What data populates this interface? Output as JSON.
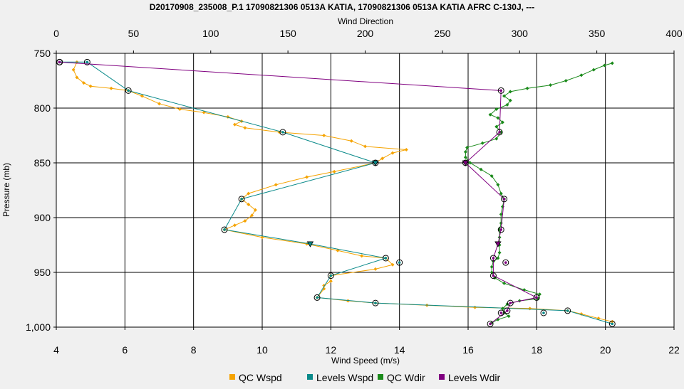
{
  "chart_data": {
    "type": "line",
    "title": "D20170908_235008_P.1  17090821306 0513A KATIA, 17090821306 0513A KATIA AFRC C-130J, ---",
    "xlabel": "Wind Speed (m/s)",
    "x2label": "Wind Direction",
    "ylabel": "Pressure (mb)",
    "xlim": [
      4,
      22
    ],
    "x2lim": [
      0,
      400
    ],
    "ylim": [
      1000,
      750
    ],
    "xticks": [
      "4",
      "6",
      "8",
      "10",
      "12",
      "14",
      "16",
      "18",
      "20",
      "22"
    ],
    "x2ticks": [
      "0",
      "50",
      "100",
      "150",
      "200",
      "250",
      "300",
      "350",
      "400"
    ],
    "yticks": [
      "750",
      "800",
      "850",
      "900",
      "950",
      "1,000"
    ],
    "grid": true,
    "legend_position": "bottom",
    "colors": {
      "qc_wspd": "#f5a300",
      "levels_wspd": "#0a8a8a",
      "qc_wdir": "#1a8a1a",
      "levels_wdir": "#800080"
    },
    "series": [
      {
        "name": "QC Wspd",
        "axis": "speed",
        "points": [
          [
            4.6,
            758
          ],
          [
            4.5,
            765
          ],
          [
            4.6,
            772
          ],
          [
            4.8,
            777
          ],
          [
            5.0,
            780
          ],
          [
            5.6,
            782
          ],
          [
            6.1,
            784
          ],
          [
            6.5,
            789
          ],
          [
            7.0,
            796
          ],
          [
            7.6,
            801
          ],
          [
            8.3,
            804
          ],
          [
            9.0,
            808
          ],
          [
            9.4,
            812
          ],
          [
            9.2,
            815
          ],
          [
            9.5,
            818
          ],
          [
            10.5,
            822
          ],
          [
            11.8,
            825
          ],
          [
            12.6,
            830
          ],
          [
            13.0,
            835
          ],
          [
            14.2,
            838
          ],
          [
            13.8,
            841
          ],
          [
            13.5,
            846
          ],
          [
            13.3,
            850
          ],
          [
            12.1,
            858
          ],
          [
            11.3,
            863
          ],
          [
            10.4,
            870
          ],
          [
            9.6,
            878
          ],
          [
            9.4,
            883
          ],
          [
            9.6,
            888
          ],
          [
            9.8,
            893
          ],
          [
            9.7,
            898
          ],
          [
            9.5,
            903
          ],
          [
            9.2,
            907
          ],
          [
            8.9,
            911
          ],
          [
            10.0,
            918
          ],
          [
            11.3,
            924
          ],
          [
            12.2,
            930
          ],
          [
            12.9,
            935
          ],
          [
            13.6,
            937
          ],
          [
            13.8,
            943
          ],
          [
            13.3,
            947
          ],
          [
            12.0,
            953
          ],
          [
            12.0,
            958
          ],
          [
            11.8,
            962
          ],
          [
            11.8,
            965
          ],
          [
            11.6,
            973
          ],
          [
            12.5,
            976
          ],
          [
            13.3,
            978
          ],
          [
            14.8,
            980
          ],
          [
            16.2,
            982
          ],
          [
            17.8,
            983
          ],
          [
            18.9,
            985
          ],
          [
            19.3,
            988
          ],
          [
            19.8,
            992
          ],
          [
            20.2,
            995
          ]
        ]
      },
      {
        "name": "Levels Wspd",
        "axis": "speed",
        "points": [
          [
            4.1,
            758
          ],
          [
            4.9,
            758
          ],
          [
            6.1,
            784
          ],
          [
            10.6,
            822
          ],
          [
            13.3,
            850
          ],
          [
            9.4,
            883
          ],
          [
            8.9,
            911
          ],
          [
            11.4,
            924
          ],
          [
            13.6,
            937
          ],
          [
            12.0,
            953
          ],
          [
            11.6,
            973
          ],
          [
            13.3,
            978
          ],
          [
            18.9,
            985
          ],
          [
            20.2,
            997
          ]
        ],
        "markers": [
          [
            4.1,
            758
          ],
          [
            4.9,
            758
          ],
          [
            6.1,
            784
          ],
          [
            10.6,
            822
          ],
          [
            13.3,
            850
          ],
          [
            9.4,
            883
          ],
          [
            8.9,
            911
          ],
          [
            13.6,
            937
          ],
          [
            14.0,
            941
          ],
          [
            12.0,
            953
          ],
          [
            11.6,
            973
          ],
          [
            13.3,
            978
          ],
          [
            18.9,
            985
          ],
          [
            18.2,
            987
          ],
          [
            20.2,
            997
          ]
        ],
        "triangles": [
          [
            13.3,
            850
          ],
          [
            11.4,
            924
          ]
        ]
      },
      {
        "name": "QC Wdir",
        "axis": "direction",
        "points": [
          [
            360,
            759
          ],
          [
            355,
            761
          ],
          [
            348,
            765
          ],
          [
            340,
            770
          ],
          [
            330,
            775
          ],
          [
            320,
            779
          ],
          [
            305,
            782
          ],
          [
            294,
            785
          ],
          [
            290,
            789
          ],
          [
            294,
            793
          ],
          [
            292,
            797
          ],
          [
            285,
            801
          ],
          [
            281,
            806
          ],
          [
            286,
            809
          ],
          [
            289,
            813
          ],
          [
            285,
            817
          ],
          [
            288,
            822
          ],
          [
            285,
            828
          ],
          [
            276,
            832
          ],
          [
            266,
            836
          ],
          [
            265,
            840
          ],
          [
            265,
            845
          ],
          [
            268,
            850
          ],
          [
            275,
            856
          ],
          [
            282,
            862
          ],
          [
            286,
            870
          ],
          [
            288,
            878
          ],
          [
            290,
            883
          ],
          [
            289,
            890
          ],
          [
            288,
            897
          ],
          [
            288,
            905
          ],
          [
            287,
            911
          ],
          [
            287,
            918
          ],
          [
            287,
            925
          ],
          [
            287,
            932
          ],
          [
            286,
            937
          ],
          [
            283,
            940
          ],
          [
            282,
            945
          ],
          [
            282,
            950
          ],
          [
            284,
            955
          ],
          [
            290,
            960
          ],
          [
            303,
            966
          ],
          [
            313,
            970
          ],
          [
            312,
            974
          ],
          [
            300,
            976
          ],
          [
            292,
            979
          ],
          [
            289,
            983
          ],
          [
            290,
            987
          ],
          [
            293,
            990
          ],
          [
            286,
            993
          ],
          [
            282,
            996
          ]
        ]
      },
      {
        "name": "Levels Wdir",
        "axis": "direction",
        "points": [
          [
            2,
            758
          ],
          [
            288,
            784
          ],
          [
            287,
            822
          ],
          [
            265,
            850
          ],
          [
            290,
            883
          ],
          [
            288,
            911
          ],
          [
            286,
            924
          ],
          [
            283,
            937
          ],
          [
            283,
            953
          ],
          [
            311,
            973
          ],
          [
            294,
            978
          ],
          [
            292,
            985
          ],
          [
            281,
            997
          ]
        ],
        "markers": [
          [
            2,
            758
          ],
          [
            288,
            784
          ],
          [
            287,
            822
          ],
          [
            265,
            850
          ],
          [
            290,
            883
          ],
          [
            288,
            911
          ],
          [
            283,
            937
          ],
          [
            291,
            941
          ],
          [
            283,
            953
          ],
          [
            311,
            973
          ],
          [
            294,
            978
          ],
          [
            292,
            985
          ],
          [
            288,
            987
          ],
          [
            281,
            997
          ]
        ],
        "triangles": [
          [
            265,
            850
          ],
          [
            286,
            924
          ]
        ]
      }
    ],
    "legend": [
      {
        "label": "QC Wspd",
        "color": "#f5a300"
      },
      {
        "label": "Levels Wspd",
        "color": "#0a8a8a"
      },
      {
        "label": "QC Wdir",
        "color": "#1a8a1a"
      },
      {
        "label": "Levels Wdir",
        "color": "#800080"
      }
    ]
  }
}
